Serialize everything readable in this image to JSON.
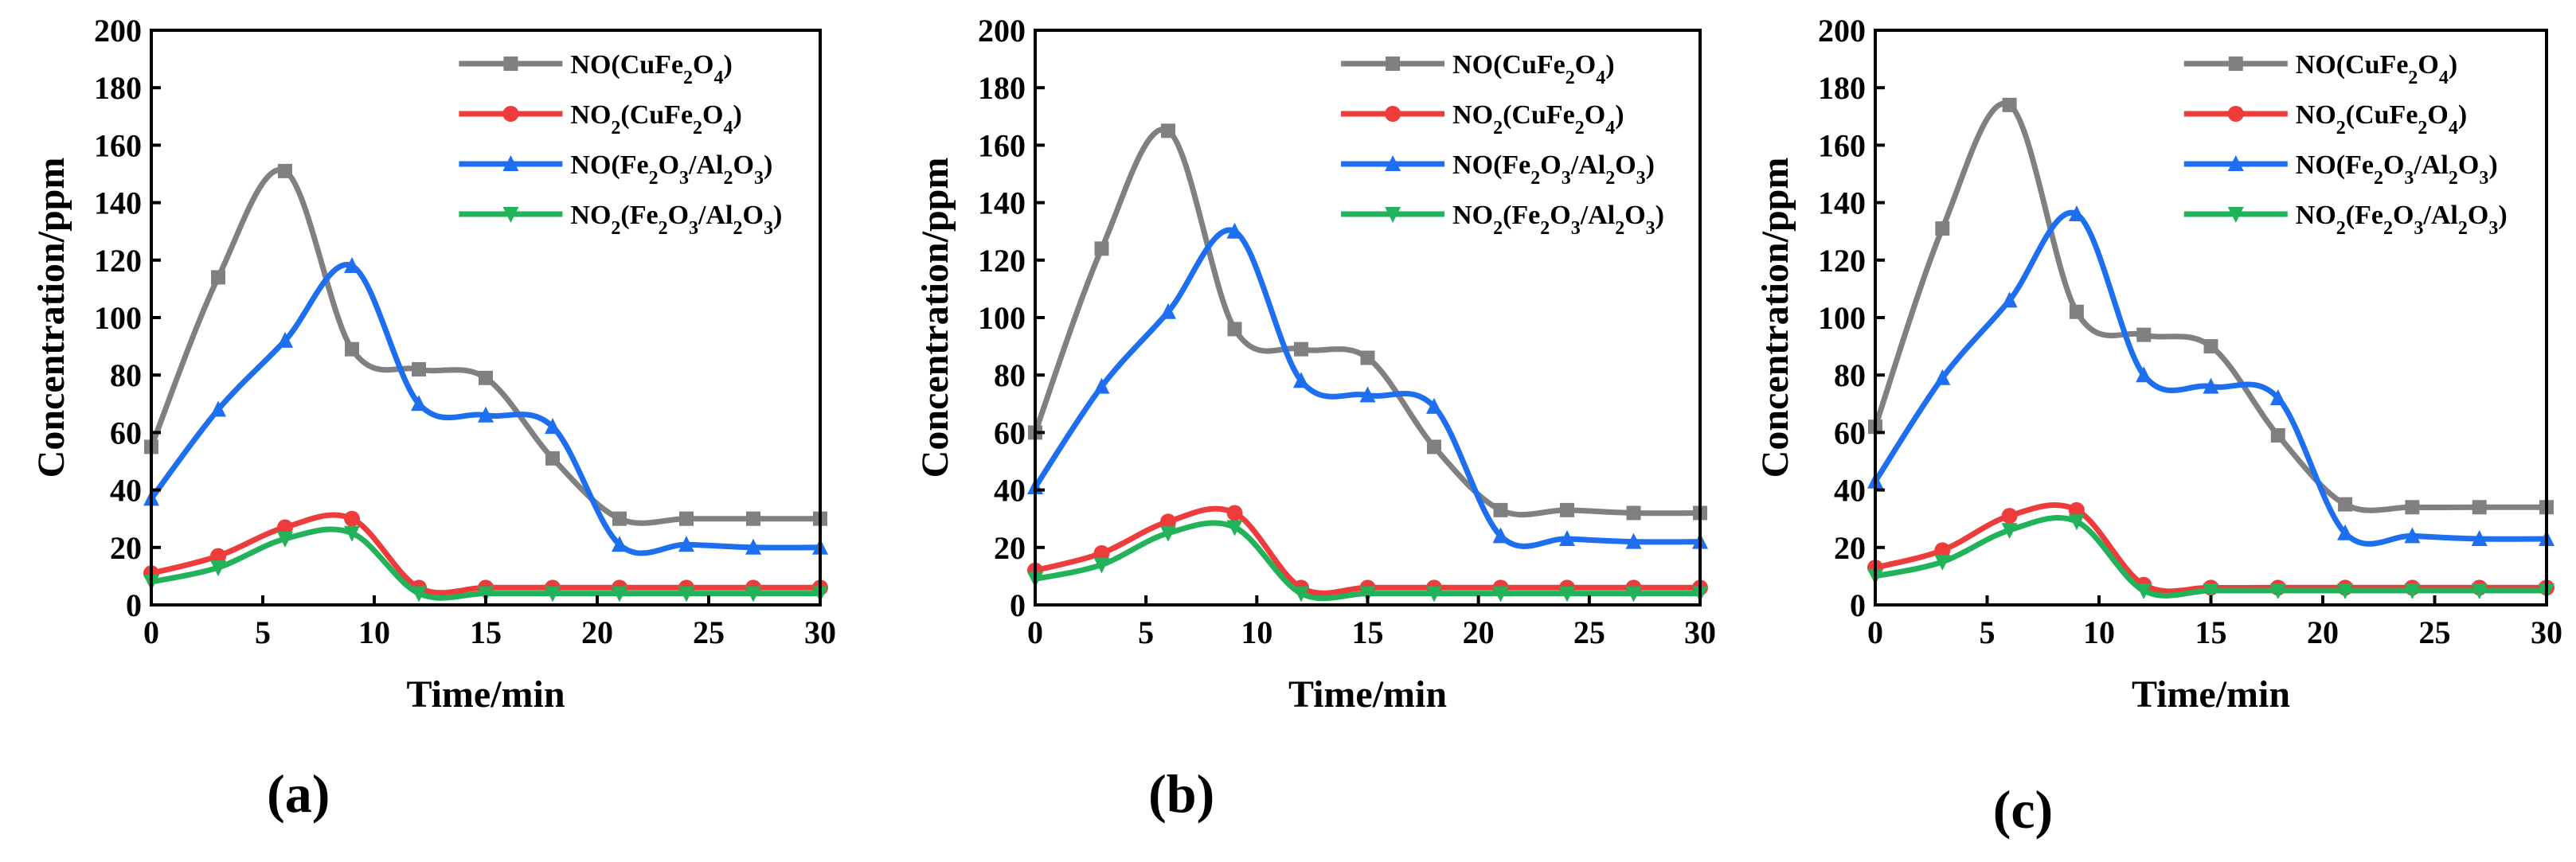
{
  "colors": {
    "no_cufe2o4": "#808080",
    "no2_cufe2o4": "#ee3b3b",
    "no_fe2o3_al2o3": "#1e6ef0",
    "no2_fe2o3_al2o3": "#21b25a"
  },
  "chart_data": [
    {
      "type": "line",
      "panel_label": "(a)",
      "xlabel": "Time/min",
      "ylabel": "Concentration/ppm",
      "xlim": [
        0,
        30
      ],
      "ylim": [
        0,
        200
      ],
      "xticks": [
        "0",
        "5",
        "10",
        "15",
        "20",
        "25",
        "30"
      ],
      "yticks": [
        "0",
        "20",
        "40",
        "60",
        "80",
        "100",
        "120",
        "140",
        "160",
        "180",
        "200"
      ],
      "legend_position": "top-right",
      "x": [
        0,
        3,
        6,
        9,
        12,
        15,
        18,
        21,
        24,
        27,
        30
      ],
      "series": [
        {
          "name": "NO(CuFe2O4)",
          "label": {
            "a": "NO(CuFe",
            "b": "2",
            "c": "O",
            "d": "4",
            "e": ")"
          },
          "marker": "square",
          "color": "#808080",
          "values": [
            55,
            114,
            151,
            89,
            82,
            79,
            51,
            30,
            30,
            30,
            30
          ]
        },
        {
          "name": "NO2(CuFe2O4)",
          "label": {
            "a": "NO",
            "b": "2",
            "c": "(CuFe",
            "d": "2",
            "e": "O",
            "f": "4",
            "g": ")"
          },
          "marker": "circle",
          "color": "#ee3b3b",
          "values": [
            11,
            17,
            27,
            30,
            6,
            6,
            6,
            6,
            6,
            6,
            6
          ]
        },
        {
          "name": "NO(Fe2O3/Al2O3)",
          "label": {
            "a": "NO(Fe",
            "b": "2",
            "c": "O",
            "d": "3",
            "e": "/Al",
            "f": "2",
            "g": "O",
            "h": "3",
            "i": ")"
          },
          "marker": "triangle-up",
          "color": "#1e6ef0",
          "values": [
            37,
            68,
            92,
            118,
            70,
            66,
            62,
            21,
            21,
            20,
            20
          ]
        },
        {
          "name": "NO2(Fe2O3/Al2O3)",
          "label": {
            "a": "NO",
            "b": "2",
            "c": "(Fe",
            "d": "2",
            "e": "O",
            "f": "3",
            "g": "/Al",
            "h": "2",
            "i": "O",
            "j": "3",
            "k": ")"
          },
          "marker": "triangle-down",
          "color": "#21b25a",
          "values": [
            8,
            13,
            23,
            25,
            4,
            4,
            4,
            4,
            4,
            4,
            4
          ]
        }
      ]
    },
    {
      "type": "line",
      "panel_label": "(b)",
      "xlabel": "Time/min",
      "ylabel": "Concentration/ppm",
      "xlim": [
        0,
        30
      ],
      "ylim": [
        0,
        200
      ],
      "xticks": [
        "0",
        "5",
        "10",
        "15",
        "20",
        "25",
        "30"
      ],
      "yticks": [
        "0",
        "20",
        "40",
        "60",
        "80",
        "100",
        "120",
        "140",
        "160",
        "180",
        "200"
      ],
      "legend_position": "top-right",
      "x": [
        0,
        3,
        6,
        9,
        12,
        15,
        18,
        21,
        24,
        27,
        30
      ],
      "series": [
        {
          "name": "NO(CuFe2O4)",
          "label": {
            "a": "NO(CuFe",
            "b": "2",
            "c": "O",
            "d": "4",
            "e": ")"
          },
          "marker": "square",
          "color": "#808080",
          "values": [
            60,
            124,
            165,
            96,
            89,
            86,
            55,
            33,
            33,
            32,
            32
          ]
        },
        {
          "name": "NO2(CuFe2O4)",
          "label": {
            "a": "NO",
            "b": "2",
            "c": "(CuFe",
            "d": "2",
            "e": "O",
            "f": "4",
            "g": ")"
          },
          "marker": "circle",
          "color": "#ee3b3b",
          "values": [
            12,
            18,
            29,
            32,
            6,
            6,
            6,
            6,
            6,
            6,
            6
          ]
        },
        {
          "name": "NO(Fe2O3/Al2O3)",
          "label": {
            "a": "NO(Fe",
            "b": "2",
            "c": "O",
            "d": "3",
            "e": "/Al",
            "f": "2",
            "g": "O",
            "h": "3",
            "i": ")"
          },
          "marker": "triangle-up",
          "color": "#1e6ef0",
          "values": [
            41,
            76,
            102,
            130,
            78,
            73,
            69,
            24,
            23,
            22,
            22
          ]
        },
        {
          "name": "NO2(Fe2O3/Al2O3)",
          "label": {
            "a": "NO",
            "b": "2",
            "c": "(Fe",
            "d": "2",
            "e": "O",
            "f": "3",
            "g": "/Al",
            "h": "2",
            "i": "O",
            "j": "3",
            "k": ")"
          },
          "marker": "triangle-down",
          "color": "#21b25a",
          "values": [
            9,
            14,
            25,
            27,
            4,
            4,
            4,
            4,
            4,
            4,
            4
          ]
        }
      ]
    },
    {
      "type": "line",
      "panel_label": "(c)",
      "xlabel": "Time/min",
      "ylabel": "Concentration/ppm",
      "xlim": [
        0,
        30
      ],
      "ylim": [
        0,
        200
      ],
      "xticks": [
        "0",
        "5",
        "10",
        "15",
        "20",
        "25",
        "30"
      ],
      "yticks": [
        "0",
        "20",
        "40",
        "60",
        "80",
        "100",
        "120",
        "140",
        "160",
        "180",
        "200"
      ],
      "legend_position": "top-right",
      "x": [
        0,
        3,
        6,
        9,
        12,
        15,
        18,
        21,
        24,
        27,
        30
      ],
      "series": [
        {
          "name": "NO(CuFe2O4)",
          "label": {
            "a": "NO(CuFe",
            "b": "2",
            "c": "O",
            "d": "4",
            "e": ")"
          },
          "marker": "square",
          "color": "#808080",
          "values": [
            62,
            131,
            174,
            102,
            94,
            90,
            59,
            35,
            34,
            34,
            34
          ]
        },
        {
          "name": "NO2(CuFe2O4)",
          "label": {
            "a": "NO",
            "b": "2",
            "c": "(CuFe",
            "d": "2",
            "e": "O",
            "f": "4",
            "g": ")"
          },
          "marker": "circle",
          "color": "#ee3b3b",
          "values": [
            13,
            19,
            31,
            33,
            7,
            6,
            6,
            6,
            6,
            6,
            6
          ]
        },
        {
          "name": "NO(Fe2O3/Al2O3)",
          "label": {
            "a": "NO(Fe",
            "b": "2",
            "c": "O",
            "d": "3",
            "e": "/Al",
            "f": "2",
            "g": "O",
            "h": "3",
            "i": ")"
          },
          "marker": "triangle-up",
          "color": "#1e6ef0",
          "values": [
            43,
            79,
            106,
            136,
            80,
            76,
            72,
            25,
            24,
            23,
            23
          ]
        },
        {
          "name": "NO2(Fe2O3/Al2O3)",
          "label": {
            "a": "NO",
            "b": "2",
            "c": "(Fe",
            "d": "2",
            "e": "O",
            "f": "3",
            "g": "/Al",
            "h": "2",
            "i": "O",
            "j": "3",
            "k": ")"
          },
          "marker": "triangle-down",
          "color": "#21b25a",
          "values": [
            10,
            15,
            26,
            29,
            5,
            5,
            5,
            5,
            5,
            5,
            5
          ]
        }
      ]
    }
  ]
}
